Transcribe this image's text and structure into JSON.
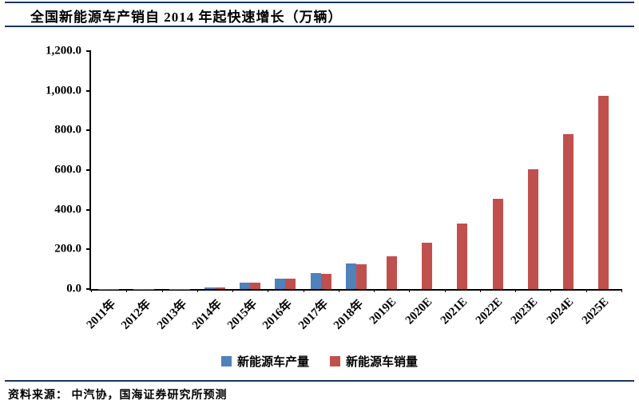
{
  "source": "资料来源： 中汽协，国海证券研究所预测",
  "colors": {
    "production_bar": "#4F81BD",
    "sales_bar": "#C0504D",
    "divider": "#17375E",
    "axis": "#000000"
  },
  "chart_data": {
    "type": "bar",
    "title": "全国新能源车产销自 2014 年起快速增长（万辆）",
    "categories": [
      "2011年",
      "2012年",
      "2013年",
      "2014年",
      "2015年",
      "2016年",
      "2017年",
      "2018年",
      "2019E",
      "2020E",
      "2021E",
      "2022E",
      "2023E",
      "2024E",
      "2025E"
    ],
    "series": [
      {
        "name": "新能源车产量",
        "color": "#4F81BD",
        "values": [
          0.8,
          1.3,
          1.8,
          7.9,
          34.0,
          51.7,
          79.4,
          127.0,
          null,
          null,
          null,
          null,
          null,
          null,
          null
        ]
      },
      {
        "name": "新能源车销量",
        "color": "#C0504D",
        "values": [
          0.8,
          1.3,
          1.8,
          7.5,
          33.1,
          50.7,
          77.7,
          125.6,
          165.0,
          235.0,
          330.0,
          455.0,
          605.0,
          780.0,
          975.0
        ]
      }
    ],
    "xlabel": "",
    "ylabel": "",
    "ylim": [
      0,
      1200
    ],
    "ytick_step": 200,
    "yticks": [
      "0.0",
      "200.0",
      "400.0",
      "600.0",
      "800.0",
      "1,000.0",
      "1,200.0"
    ],
    "grid": false,
    "legend_position": "bottom"
  }
}
